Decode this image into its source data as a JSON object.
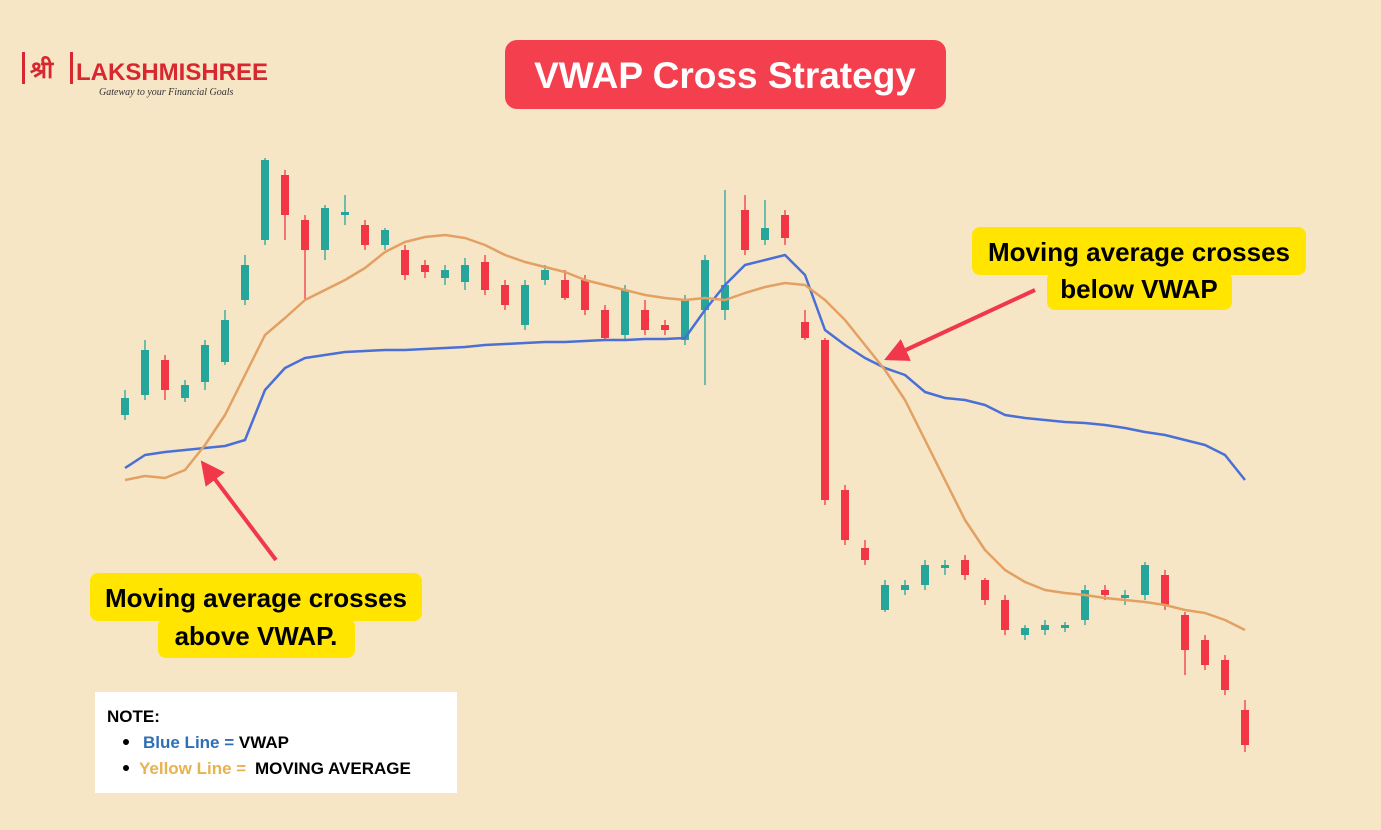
{
  "logo": {
    "script": "श्री",
    "name": "LAKSHMISHREE",
    "tagline": "Gateway to your Financial Goals"
  },
  "title": "VWAP Cross Strategy",
  "annotations": [
    {
      "lines": [
        "Moving average crosses",
        "above VWAP."
      ]
    },
    {
      "lines": [
        "Moving average crosses",
        "below VWAP"
      ]
    }
  ],
  "note": {
    "heading": "NOTE:",
    "items": [
      "Blue Line =",
      "Yellow Line ="
    ]
  },
  "chart_data": {
    "type": "candlestick",
    "up_color": "#26a69a",
    "down_color": "#f23645",
    "open": [
      585,
      605,
      640,
      602,
      618,
      638,
      700,
      760,
      825,
      780,
      750,
      785,
      775,
      755,
      750,
      735,
      722,
      718,
      738,
      715,
      675,
      720,
      720,
      720,
      690,
      665,
      690,
      675,
      660,
      690,
      690,
      790,
      760,
      785,
      678,
      660,
      510,
      452,
      390,
      410,
      415,
      432,
      440,
      420,
      400,
      365,
      370,
      372,
      380,
      410,
      402,
      405,
      425,
      385,
      360,
      340,
      290
    ],
    "high": [
      610,
      660,
      645,
      620,
      660,
      690,
      745,
      842,
      830,
      785,
      795,
      805,
      780,
      772,
      755,
      740,
      735,
      742,
      745,
      720,
      720,
      735,
      730,
      725,
      695,
      715,
      700,
      680,
      705,
      745,
      810,
      805,
      800,
      790,
      690,
      662,
      515,
      460,
      420,
      420,
      440,
      440,
      445,
      422,
      405,
      375,
      380,
      378,
      415,
      415,
      410,
      438,
      430,
      388,
      365,
      345,
      300
    ],
    "low": [
      580,
      600,
      600,
      598,
      610,
      635,
      695,
      755,
      760,
      700,
      740,
      775,
      750,
      750,
      720,
      722,
      715,
      710,
      705,
      690,
      670,
      715,
      700,
      685,
      660,
      660,
      665,
      665,
      655,
      615,
      680,
      745,
      755,
      755,
      660,
      495,
      455,
      435,
      388,
      405,
      410,
      425,
      420,
      395,
      365,
      360,
      365,
      368,
      375,
      400,
      395,
      400,
      390,
      325,
      330,
      305,
      248
    ],
    "close": [
      602,
      650,
      610,
      615,
      655,
      680,
      735,
      840,
      785,
      750,
      792,
      788,
      755,
      770,
      725,
      728,
      730,
      735,
      710,
      695,
      715,
      730,
      702,
      690,
      662,
      710,
      670,
      670,
      700,
      740,
      715,
      750,
      772,
      762,
      662,
      500,
      460,
      440,
      415,
      415,
      435,
      435,
      425,
      400,
      370,
      372,
      375,
      375,
      410,
      405,
      405,
      435,
      395,
      350,
      335,
      310,
      255
    ],
    "series": [
      {
        "name": "VWAP",
        "color": "#4a6fd6",
        "values": [
          532,
          545,
          548,
          550,
          552,
          554,
          560,
          610,
          632,
          642,
          645,
          648,
          649,
          650,
          650,
          651,
          652,
          653,
          655,
          656,
          657,
          658,
          658,
          659,
          660,
          660,
          661,
          661,
          662,
          690,
          715,
          735,
          740,
          745,
          725,
          670,
          655,
          642,
          632,
          625,
          608,
          602,
          600,
          595,
          585,
          582,
          580,
          578,
          577,
          575,
          572,
          568,
          565,
          560,
          555,
          545,
          520
        ]
      },
      {
        "name": "MOVING AVERAGE",
        "color": "#e3a063",
        "values": [
          520,
          524,
          522,
          530,
          555,
          585,
          625,
          665,
          682,
          700,
          710,
          720,
          732,
          748,
          758,
          763,
          765,
          762,
          755,
          745,
          738,
          733,
          728,
          720,
          715,
          710,
          705,
          702,
          700,
          702,
          700,
          707,
          713,
          717,
          715,
          700,
          680,
          655,
          630,
          600,
          560,
          520,
          480,
          450,
          430,
          418,
          410,
          407,
          405,
          402,
          400,
          398,
          395,
          390,
          387,
          380,
          370
        ]
      }
    ]
  }
}
